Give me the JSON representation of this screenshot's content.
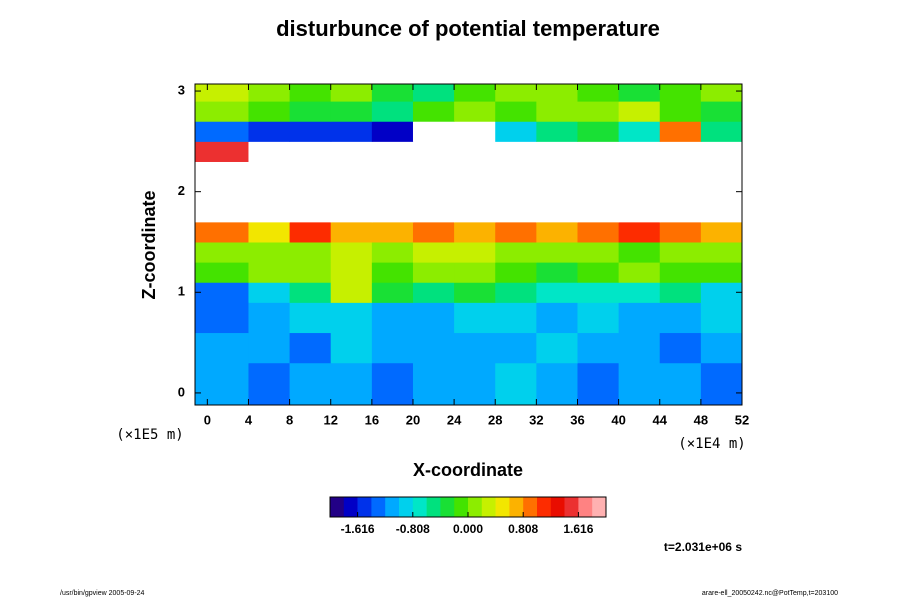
{
  "chart_data": {
    "type": "heatmap",
    "title": "disturbunce of potential temperature",
    "x_label": "X-coordinate",
    "y_label": "Z-coordinate",
    "x_unit": "(×1E4 m)",
    "y_unit": "(×1E5 m)",
    "time_label": "t=2.031e+06 s",
    "footer_left": "/usr/bin/gpview 2005-09-24",
    "footer_right": "arare-ell_20050242.nc@PotTemp,t=203100",
    "xlim": [
      -1.2,
      52
    ],
    "ylim": [
      -0.12,
      3.07
    ],
    "xticks": [
      0,
      4,
      8,
      12,
      16,
      20,
      24,
      28,
      32,
      36,
      40,
      44,
      48,
      52
    ],
    "yticks": [
      0,
      1,
      2,
      3
    ],
    "x_edges": [
      -1.2,
      4,
      8,
      12,
      16,
      20,
      24,
      28,
      32,
      36,
      40,
      44,
      48,
      52
    ],
    "y_edges": [
      -0.12,
      0.3,
      0.6,
      0.9,
      1.1,
      1.3,
      1.5,
      1.7,
      1.9,
      2.1,
      2.3,
      2.5,
      2.7,
      2.9,
      3.07
    ],
    "values": [
      [
        -1.2,
        -1.3,
        -1.1,
        -1.2,
        -1.3,
        -1.1,
        -1.2,
        -1.0,
        -1.2,
        -1.3,
        -1.1,
        -1.2,
        -1.3
      ],
      [
        -1.1,
        -1.2,
        -1.3,
        -1.0,
        -1.1,
        -1.2,
        -1.1,
        -1.2,
        -1.0,
        -1.1,
        -1.2,
        -1.3,
        -1.1
      ],
      [
        -1.3,
        -1.1,
        -1.0,
        -0.9,
        -1.1,
        -1.2,
        -1.0,
        -0.9,
        -1.1,
        -1.0,
        -1.2,
        -1.1,
        -1.0
      ],
      [
        -1.4,
        -0.9,
        -0.6,
        0.4,
        -0.3,
        -0.5,
        -0.4,
        -0.6,
        -0.7,
        -0.8,
        -0.7,
        -0.6,
        -0.9
      ],
      [
        -0.2,
        0.0,
        0.1,
        0.3,
        -0.1,
        0.0,
        0.2,
        -0.2,
        -0.3,
        -0.1,
        0.0,
        -0.2,
        -0.1
      ],
      [
        0.2,
        0.1,
        0.0,
        0.3,
        0.2,
        0.4,
        0.3,
        0.1,
        0.2,
        0.0,
        -0.1,
        0.1,
        0.2
      ],
      [
        0.9,
        0.6,
        1.1,
        0.8,
        0.7,
        0.9,
        0.8,
        1.0,
        0.7,
        0.9,
        1.2,
        1.0,
        0.8
      ],
      [
        2.5,
        2.5,
        2.5,
        2.5,
        2.5,
        2.5,
        2.5,
        2.5,
        2.5,
        2.5,
        2.5,
        2.5,
        2.5
      ],
      [
        2.5,
        2.5,
        2.5,
        2.5,
        2.5,
        2.5,
        2.5,
        2.5,
        2.5,
        2.5,
        2.5,
        2.5,
        2.5
      ],
      [
        2.5,
        2.5,
        2.5,
        2.5,
        2.5,
        2.5,
        2.5,
        2.5,
        2.5,
        2.5,
        2.5,
        2.5,
        2.5
      ],
      [
        1.6,
        2.5,
        2.5,
        2.5,
        2.5,
        2.5,
        2.5,
        2.5,
        2.5,
        2.5,
        2.5,
        2.5,
        2.5
      ],
      [
        -1.4,
        -1.5,
        -1.6,
        -1.5,
        -1.8,
        2.5,
        2.5,
        -1.0,
        -0.6,
        -0.4,
        -0.8,
        0.9,
        -0.5
      ],
      [
        0.1,
        -0.2,
        -0.4,
        -0.3,
        -0.6,
        -0.2,
        0.0,
        -0.1,
        0.1,
        0.0,
        0.3,
        -0.2,
        -0.4
      ],
      [
        0.3,
        0.1,
        -0.2,
        0.0,
        -0.3,
        -0.5,
        -0.2,
        0.1,
        0.0,
        -0.1,
        -0.3,
        -0.2,
        0.0
      ]
    ],
    "clim": [
      -2.02,
      2.02
    ],
    "clevels": 20,
    "cticks": [
      -1.616,
      -0.808,
      {
        "value": 0,
        "label": "0.000"
      },
      0.808,
      1.616
    ],
    "colors": [
      "#330066",
      "#0000c8",
      "#0050ff",
      "#00b0ff",
      "#00e8e0",
      "#00e070",
      "#30e000",
      "#a0f000",
      "#f0f000",
      "#ffa000",
      "#ff3000",
      "#e00000",
      "#ff8080",
      "#ffc8c8"
    ],
    "out_of_range_color": "#ffffff"
  }
}
